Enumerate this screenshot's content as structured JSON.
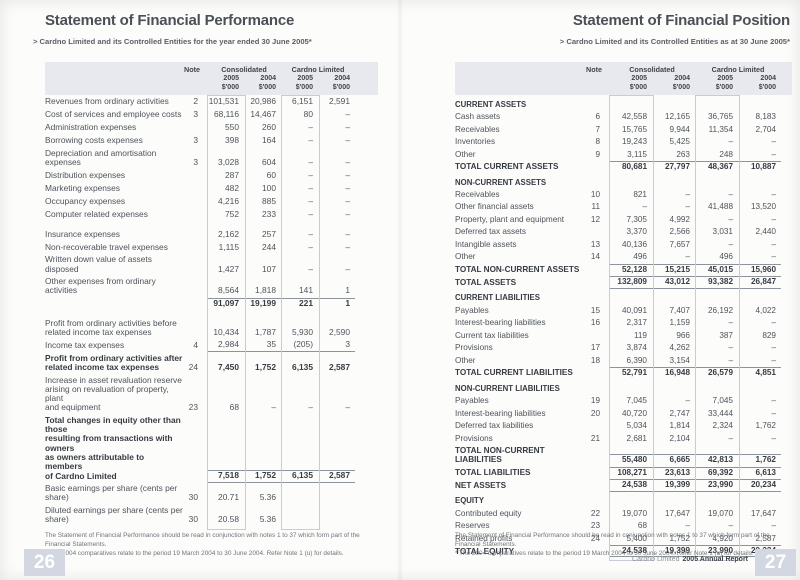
{
  "colors": {
    "header_band": "#e7e9ef",
    "column_box_border": "#c8ccd6",
    "rule_line": "#8d939b",
    "body_text": "#4e545b",
    "bold_text": "#363b42",
    "page_number_bg": "#d2d7e2",
    "page_number_text": "#ffffff"
  },
  "header_cols": {
    "note": "Note",
    "consolidated": "Consolidated",
    "cardno": "Cardno Limited",
    "years": [
      "2005",
      "2004",
      "2005",
      "2004"
    ],
    "unit": "$'000"
  },
  "left_page": {
    "title": "Statement of Financial Performance",
    "subtitle": "> Cardno Limited and its Controlled Entities for the year ended 30 June 2005*",
    "rows": [
      {
        "l": "Revenues from ordinary activities",
        "n": "2",
        "v": [
          "101,531",
          "20,986",
          "6,151",
          "2,591"
        ],
        "f": ""
      },
      {
        "l": "Cost of services and employee costs",
        "n": "3",
        "v": [
          "68,116",
          "14,467",
          "80",
          "–"
        ],
        "f": ""
      },
      {
        "l": "Administration expenses",
        "n": "",
        "v": [
          "550",
          "260",
          "–",
          "–"
        ],
        "f": ""
      },
      {
        "l": "Borrowing costs expenses",
        "n": "3",
        "v": [
          "398",
          "164",
          "–",
          "–"
        ],
        "f": ""
      },
      {
        "l": "Depreciation and amortisation expenses",
        "n": "3",
        "v": [
          "3,028",
          "604",
          "–",
          "–"
        ],
        "f": ""
      },
      {
        "l": "Distribution expenses",
        "n": "",
        "v": [
          "287",
          "60",
          "–",
          "–"
        ],
        "f": ""
      },
      {
        "l": "Marketing expenses",
        "n": "",
        "v": [
          "482",
          "100",
          "–",
          "–"
        ],
        "f": ""
      },
      {
        "l": "Occupancy expenses",
        "n": "",
        "v": [
          "4,216",
          "885",
          "–",
          "–"
        ],
        "f": ""
      },
      {
        "l": "Computer related expenses",
        "n": "",
        "v": [
          "752",
          "233",
          "–",
          "–"
        ],
        "f": ""
      },
      {
        "f": "p"
      },
      {
        "l": "Insurance expenses",
        "n": "",
        "v": [
          "2,162",
          "257",
          "–",
          "–"
        ],
        "f": ""
      },
      {
        "l": "Non-recoverable travel expenses",
        "n": "",
        "v": [
          "1,115",
          "244",
          "–",
          "–"
        ],
        "f": ""
      },
      {
        "l": "Written down value of assets disposed",
        "n": "",
        "v": [
          "1,427",
          "107",
          "–",
          "–"
        ],
        "f": ""
      },
      {
        "l": "Other expenses from ordinary activities",
        "n": "",
        "v": [
          "8,564",
          "1,818",
          "141",
          "1"
        ],
        "f": ""
      },
      {
        "l": "",
        "n": "",
        "v": [
          "91,097",
          "19,199",
          "221",
          "1"
        ],
        "f": "bt"
      },
      {
        "f": "p"
      },
      {
        "l": "Profit from ordinary activities before\nrelated income tax expenses",
        "n": "",
        "v": [
          "10,434",
          "1,787",
          "5,930",
          "2,590"
        ],
        "f": ""
      },
      {
        "l": "Income tax expenses",
        "n": "4",
        "v": [
          "2,984",
          "35",
          "(205)",
          "3"
        ],
        "f": "u"
      },
      {
        "l": "Profit from ordinary activities after\nrelated income tax expenses",
        "n": "24",
        "v": [
          "7,450",
          "1,752",
          "6,135",
          "2,587"
        ],
        "f": "b"
      },
      {
        "l": "Increase in asset revaluation reserve\narising on revaluation of property, plant\nand equipment",
        "n": "23",
        "v": [
          "68",
          "–",
          "–",
          "–"
        ],
        "f": ""
      },
      {
        "l": "Total changes in equity other than those\nresulting from transactions with owners\nas owners attributable to members\nof Cardno Limited",
        "n": "",
        "v": [
          "7,518",
          "1,752",
          "6,135",
          "2,587"
        ],
        "f": "btu"
      },
      {
        "l": "Basic earnings per share (cents per share)",
        "n": "30",
        "v": [
          "20.71",
          "5.36",
          "",
          ""
        ],
        "f": ""
      },
      {
        "l": "Diluted earnings per share (cents per share)",
        "n": "30",
        "v": [
          "20.58",
          "5.36",
          "",
          ""
        ],
        "f": ""
      }
    ],
    "footnotes": [
      "The Statement of Financial Performance should be read in conjunction with notes 1 to 37 which form part of the Financial Statements.",
      "* The 2004 comparatives relate to the period 19 March 2004 to 30 June 2004.  Refer Note 1 (u) for details."
    ],
    "page_number": "26"
  },
  "right_page": {
    "title": "Statement of Financial Position",
    "subtitle": "> Cardno Limited and its Controlled Entities as at 30 June 2005*",
    "rows": [
      {
        "l": "CURRENT ASSETS",
        "f": "s"
      },
      {
        "l": "Cash assets",
        "n": "6",
        "v": [
          "42,558",
          "12,165",
          "36,765",
          "8,183"
        ],
        "f": ""
      },
      {
        "l": "Receivables",
        "n": "7",
        "v": [
          "15,765",
          "9,944",
          "11,354",
          "2,704"
        ],
        "f": ""
      },
      {
        "l": "Inventories",
        "n": "8",
        "v": [
          "19,243",
          "5,425",
          "–",
          "–"
        ],
        "f": ""
      },
      {
        "l": "Other",
        "n": "9",
        "v": [
          "3,115",
          "263",
          "248",
          "–"
        ],
        "f": ""
      },
      {
        "l": "TOTAL CURRENT ASSETS",
        "n": "",
        "v": [
          "80,681",
          "27,797",
          "48,367",
          "10,887"
        ],
        "f": "bt"
      },
      {
        "l": "NON-CURRENT ASSETS",
        "f": "s"
      },
      {
        "l": "Receivables",
        "n": "10",
        "v": [
          "821",
          "–",
          "–",
          "–"
        ],
        "f": ""
      },
      {
        "l": "Other financial assets",
        "n": "11",
        "v": [
          "–",
          "–",
          "41,488",
          "13,520"
        ],
        "f": ""
      },
      {
        "l": "Property, plant and equipment",
        "n": "12",
        "v": [
          "7,305",
          "4,992",
          "–",
          "–"
        ],
        "f": ""
      },
      {
        "l": "Deferred tax assets",
        "n": "",
        "v": [
          "3,370",
          "2,566",
          "3,031",
          "2,440"
        ],
        "f": ""
      },
      {
        "l": "Intangible assets",
        "n": "13",
        "v": [
          "40,136",
          "7,657",
          "–",
          "–"
        ],
        "f": ""
      },
      {
        "l": "Other",
        "n": "14",
        "v": [
          "496",
          "–",
          "496",
          "–"
        ],
        "f": ""
      },
      {
        "l": "TOTAL NON-CURRENT ASSETS",
        "n": "",
        "v": [
          "52,128",
          "15,215",
          "45,015",
          "15,960"
        ],
        "f": "bt"
      },
      {
        "l": "TOTAL ASSETS",
        "n": "",
        "v": [
          "132,809",
          "43,012",
          "93,382",
          "26,847"
        ],
        "f": "btu"
      },
      {
        "l": "CURRENT LIABILITIES",
        "f": "s"
      },
      {
        "l": "Payables",
        "n": "15",
        "v": [
          "40,091",
          "7,407",
          "26,192",
          "4,022"
        ],
        "f": ""
      },
      {
        "l": "Interest-bearing liabilities",
        "n": "16",
        "v": [
          "2,317",
          "1,159",
          "–",
          "–"
        ],
        "f": ""
      },
      {
        "l": "Current tax liabilities",
        "n": "",
        "v": [
          "119",
          "966",
          "387",
          "829"
        ],
        "f": ""
      },
      {
        "l": "Provisions",
        "n": "17",
        "v": [
          "3,874",
          "4,262",
          "–",
          "–"
        ],
        "f": ""
      },
      {
        "l": "Other",
        "n": "18",
        "v": [
          "6,390",
          "3,154",
          "–",
          "–"
        ],
        "f": ""
      },
      {
        "l": "TOTAL CURRENT LIABILITIES",
        "n": "",
        "v": [
          "52,791",
          "16,948",
          "26,579",
          "4,851"
        ],
        "f": "bt"
      },
      {
        "l": "NON-CURRENT LIABILITIES",
        "f": "s"
      },
      {
        "l": "Payables",
        "n": "19",
        "v": [
          "7,045",
          "–",
          "7,045",
          "–"
        ],
        "f": ""
      },
      {
        "l": "Interest-bearing liabilities",
        "n": "20",
        "v": [
          "40,720",
          "2,747",
          "33,444",
          "–"
        ],
        "f": ""
      },
      {
        "l": "Deferred tax liabilities",
        "n": "",
        "v": [
          "5,034",
          "1,814",
          "2,324",
          "1,762"
        ],
        "f": ""
      },
      {
        "l": "Provisions",
        "n": "21",
        "v": [
          "2,681",
          "2,104",
          "–",
          "–"
        ],
        "f": ""
      },
      {
        "l": "TOTAL NON-CURRENT LIABILITIES",
        "n": "",
        "v": [
          "55,480",
          "6,665",
          "42,813",
          "1,762"
        ],
        "f": "bt"
      },
      {
        "l": "TOTAL LIABILITIES",
        "n": "",
        "v": [
          "108,271",
          "23,613",
          "69,392",
          "6,613"
        ],
        "f": "bt"
      },
      {
        "l": "NET ASSETS",
        "n": "",
        "v": [
          "24,538",
          "19,399",
          "23,990",
          "20,234"
        ],
        "f": "btu"
      },
      {
        "l": "EQUITY",
        "f": "s"
      },
      {
        "l": "Contributed equity",
        "n": "22",
        "v": [
          "19,070",
          "17,647",
          "19,070",
          "17,647"
        ],
        "f": ""
      },
      {
        "l": "Reserves",
        "n": "23",
        "v": [
          "68",
          "–",
          "–",
          "–"
        ],
        "f": ""
      },
      {
        "l": "Retained profits",
        "n": "24",
        "v": [
          "5,400",
          "1,752",
          "4,920",
          "2,587"
        ],
        "f": ""
      },
      {
        "l": "TOTAL EQUITY",
        "n": "",
        "v": [
          "24,538",
          "19,399",
          "23,990",
          "20,234"
        ],
        "f": "btu"
      }
    ],
    "footnotes": [
      "The Statement of Financial Performance should be read in conjunction with notes 1 to 37 which form part of the Financial Statements.",
      "* The 2004 comparatives relate to the period 19 March 2004 to 30 June 2004.  Refer Note 1 (u) for details."
    ],
    "footer_brand": "Cardno Limited",
    "footer_title": "2005 Annual Report",
    "page_number": "27"
  }
}
